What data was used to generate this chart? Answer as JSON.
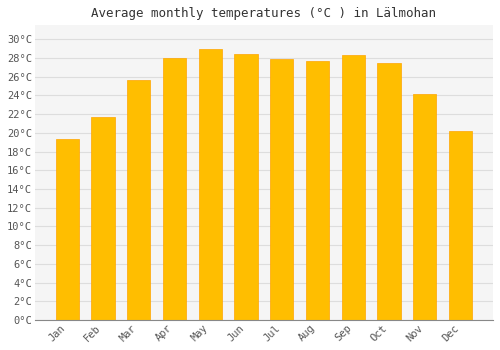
{
  "title": "Average monthly temperatures (°C ) in Lälmohan",
  "months": [
    "Jan",
    "Feb",
    "Mar",
    "Apr",
    "May",
    "Jun",
    "Jul",
    "Aug",
    "Sep",
    "Oct",
    "Nov",
    "Dec"
  ],
  "values": [
    19.3,
    21.7,
    25.6,
    28.0,
    29.0,
    28.4,
    27.9,
    27.7,
    28.3,
    27.5,
    24.2,
    20.2
  ],
  "bar_color_face": "#FFBE00",
  "bar_color_edge": "#FFA500",
  "bar_color_bottom": "#FFD966",
  "background_color": "#ffffff",
  "plot_bg_color": "#f5f5f5",
  "grid_color": "#dddddd",
  "yticks": [
    0,
    2,
    4,
    6,
    8,
    10,
    12,
    14,
    16,
    18,
    20,
    22,
    24,
    26,
    28,
    30
  ],
  "ylim": [
    0,
    31.5
  ],
  "title_fontsize": 9,
  "tick_fontsize": 7.5,
  "bar_width": 0.65
}
